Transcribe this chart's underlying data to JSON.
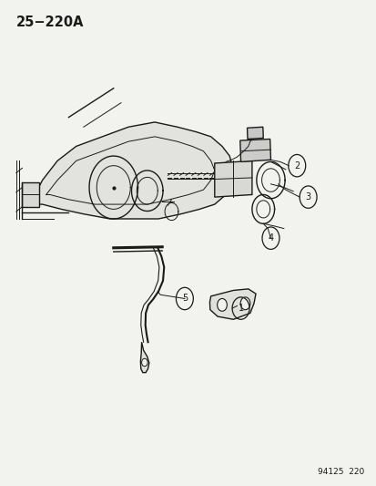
{
  "title": "25−220A",
  "footer": "94125  220",
  "bg_color": "#f2f2ee",
  "line_color": "#1a1a1a",
  "figsize": [
    4.14,
    5.33
  ],
  "dpi": 100,
  "callout_data": [
    [
      1,
      0.64,
      0.365
    ],
    [
      2,
      0.79,
      0.66
    ],
    [
      3,
      0.82,
      0.595
    ],
    [
      4,
      0.72,
      0.51
    ],
    [
      5,
      0.49,
      0.385
    ]
  ]
}
